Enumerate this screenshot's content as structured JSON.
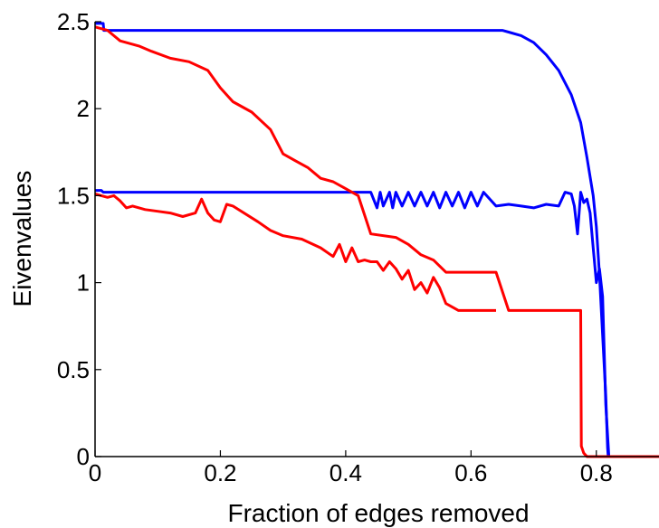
{
  "chart_data": {
    "type": "line",
    "title": "",
    "xlabel": "Fraction of edges removed",
    "ylabel": "Eivenvalues",
    "xlim": [
      0,
      0.9
    ],
    "ylim": [
      0,
      2.5
    ],
    "x_ticks": [
      0,
      0.2,
      0.4,
      0.6,
      0.8
    ],
    "x_tick_labels": [
      "0",
      "0.2",
      "0.4",
      "0.6",
      "0.8"
    ],
    "y_ticks": [
      0,
      0.5,
      1,
      1.5,
      2,
      2.5
    ],
    "y_tick_labels": [
      "0",
      "0.5",
      "1",
      "1.5",
      "2",
      "2.5"
    ],
    "grid": false,
    "legend": "none",
    "series": [
      {
        "color": "#0000ff",
        "x": [
          0,
          0.013,
          0.014,
          0.2,
          0.4,
          0.5,
          0.6,
          0.65,
          0.66,
          0.68,
          0.7,
          0.72,
          0.74,
          0.76,
          0.775,
          0.785,
          0.795,
          0.8,
          0.805,
          0.81,
          0.815,
          0.818,
          0.819,
          0.9
        ],
        "y": [
          2.49,
          2.49,
          2.45,
          2.45,
          2.45,
          2.45,
          2.45,
          2.45,
          2.44,
          2.42,
          2.38,
          2.31,
          2.22,
          2.08,
          1.92,
          1.72,
          1.5,
          1.32,
          1.05,
          0.7,
          0.35,
          0.05,
          0.0,
          0.0
        ]
      },
      {
        "color": "#0000ff",
        "x": [
          0,
          0.01,
          0.013,
          0.02,
          0.04,
          0.045,
          0.1,
          0.2,
          0.3,
          0.4,
          0.44,
          0.45,
          0.455,
          0.46,
          0.47,
          0.475,
          0.48,
          0.49,
          0.5,
          0.51,
          0.52,
          0.53,
          0.54,
          0.55,
          0.56,
          0.57,
          0.58,
          0.59,
          0.6,
          0.61,
          0.62,
          0.64,
          0.66,
          0.68,
          0.7,
          0.72,
          0.74,
          0.75,
          0.76,
          0.765,
          0.77,
          0.775,
          0.78,
          0.785,
          0.79,
          0.795,
          0.8,
          0.805,
          0.81,
          0.815,
          0.82,
          0.9
        ],
        "y": [
          1.53,
          1.53,
          1.52,
          1.52,
          1.52,
          1.52,
          1.52,
          1.52,
          1.52,
          1.52,
          1.52,
          1.43,
          1.52,
          1.44,
          1.52,
          1.43,
          1.52,
          1.44,
          1.52,
          1.44,
          1.52,
          1.44,
          1.52,
          1.43,
          1.52,
          1.44,
          1.52,
          1.43,
          1.52,
          1.44,
          1.52,
          1.44,
          1.45,
          1.44,
          1.43,
          1.45,
          1.44,
          1.52,
          1.51,
          1.44,
          1.28,
          1.52,
          1.46,
          1.48,
          1.4,
          1.2,
          1.0,
          1.08,
          0.92,
          0.3,
          0.0,
          0.0
        ]
      },
      {
        "color": "#ff0000",
        "x": [
          0,
          0.02,
          0.04,
          0.07,
          0.09,
          0.12,
          0.15,
          0.18,
          0.2,
          0.22,
          0.25,
          0.28,
          0.3,
          0.32,
          0.34,
          0.36,
          0.38,
          0.4,
          0.42,
          0.44,
          0.48,
          0.5,
          0.52,
          0.54,
          0.56,
          0.6,
          0.64,
          0.66,
          0.72,
          0.775,
          0.776,
          0.78,
          0.785,
          0.9
        ],
        "y": [
          2.47,
          2.45,
          2.39,
          2.36,
          2.33,
          2.29,
          2.27,
          2.22,
          2.12,
          2.04,
          1.98,
          1.88,
          1.74,
          1.7,
          1.66,
          1.6,
          1.58,
          1.54,
          1.5,
          1.28,
          1.26,
          1.22,
          1.16,
          1.13,
          1.06,
          1.06,
          1.06,
          0.84,
          0.84,
          0.84,
          0.06,
          0.02,
          0.0,
          0.0
        ]
      },
      {
        "color": "#ff0000",
        "x": [
          0,
          0.01,
          0.02,
          0.03,
          0.04,
          0.05,
          0.06,
          0.08,
          0.1,
          0.12,
          0.14,
          0.16,
          0.17,
          0.18,
          0.19,
          0.2,
          0.21,
          0.22,
          0.26,
          0.28,
          0.3,
          0.33,
          0.36,
          0.38,
          0.39,
          0.4,
          0.41,
          0.42,
          0.43,
          0.44,
          0.45,
          0.46,
          0.47,
          0.48,
          0.49,
          0.5,
          0.51,
          0.52,
          0.53,
          0.54,
          0.55,
          0.56,
          0.58,
          0.6,
          0.62,
          0.64
        ],
        "y": [
          1.51,
          1.5,
          1.49,
          1.5,
          1.47,
          1.43,
          1.44,
          1.42,
          1.41,
          1.4,
          1.38,
          1.4,
          1.48,
          1.4,
          1.36,
          1.35,
          1.45,
          1.44,
          1.35,
          1.3,
          1.27,
          1.25,
          1.2,
          1.15,
          1.22,
          1.12,
          1.2,
          1.12,
          1.13,
          1.12,
          1.12,
          1.07,
          1.12,
          1.08,
          1.02,
          1.07,
          0.96,
          1.0,
          0.94,
          1.03,
          0.97,
          0.88,
          0.84,
          0.84,
          0.84,
          0.84
        ]
      }
    ]
  }
}
